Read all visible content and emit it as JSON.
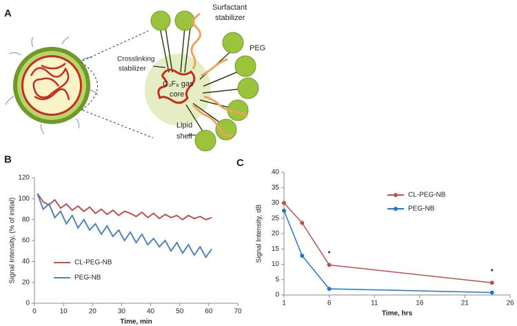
{
  "panel_a": {
    "label": "A",
    "surfactant": [
      "Surfactant",
      "stabilizer"
    ],
    "peg": "PEG",
    "crosslinking": [
      "Crosslinking",
      "stabilizer"
    ],
    "core": [
      "C₃F₈ gas",
      "core"
    ],
    "lipid": [
      "Lipid",
      "shell"
    ]
  },
  "chart_data": [
    {
      "type": "line",
      "label": "B",
      "x_label": "Time, min",
      "y_label": "Signal Intensity, (% of initial)",
      "x": [
        1,
        3,
        5,
        7,
        9,
        11,
        13,
        15,
        17,
        19,
        21,
        23,
        25,
        27,
        29,
        31,
        33,
        35,
        37,
        39,
        41,
        43,
        45,
        47,
        49,
        51,
        53,
        55,
        57,
        59,
        61
      ],
      "series": [
        {
          "name": "CL-PEG-NB",
          "color": "#c0504d",
          "values": [
            105,
            97,
            94,
            99,
            91,
            95,
            89,
            93,
            88,
            92,
            86,
            90,
            85,
            89,
            84,
            88,
            86,
            83,
            87,
            82,
            86,
            81,
            85,
            82,
            84,
            80,
            84,
            81,
            83,
            80,
            82
          ]
        },
        {
          "name": "PEG-NB",
          "color": "#4f81bd",
          "values": [
            105,
            90,
            95,
            82,
            88,
            76,
            84,
            72,
            80,
            70,
            76,
            66,
            74,
            64,
            70,
            60,
            68,
            58,
            66,
            56,
            62,
            54,
            60,
            50,
            58,
            48,
            56,
            46,
            54,
            44,
            52
          ]
        }
      ],
      "xlim": [
        0,
        70
      ],
      "xticks": [
        0,
        10,
        20,
        30,
        40,
        50,
        60,
        70
      ],
      "ylim": [
        0,
        120
      ],
      "yticks": [
        0,
        20,
        40,
        60,
        80,
        100,
        120
      ]
    },
    {
      "type": "line",
      "label": "C",
      "x_label": "Time, hrs",
      "y_label": "Signal Intensity, dB",
      "markers": true,
      "x": [
        1,
        3,
        6,
        24
      ],
      "series": [
        {
          "name": "CL-PEG-NB",
          "color": "#c0504d",
          "values": [
            30,
            23.5,
            9.8,
            4
          ]
        },
        {
          "name": "PEG-NB",
          "color": "#1f77d0",
          "values": [
            27.5,
            12.8,
            2,
            0.8
          ]
        }
      ],
      "annotations": [
        {
          "text": "*",
          "x": 6
        },
        {
          "text": "*",
          "x": 24
        }
      ],
      "xlim": [
        1,
        26
      ],
      "xticks": [
        1,
        6,
        11,
        16,
        21,
        26
      ],
      "ylim": [
        0,
        40
      ],
      "yticks": [
        0,
        5,
        10,
        15,
        20,
        25,
        30,
        35,
        40
      ]
    }
  ]
}
